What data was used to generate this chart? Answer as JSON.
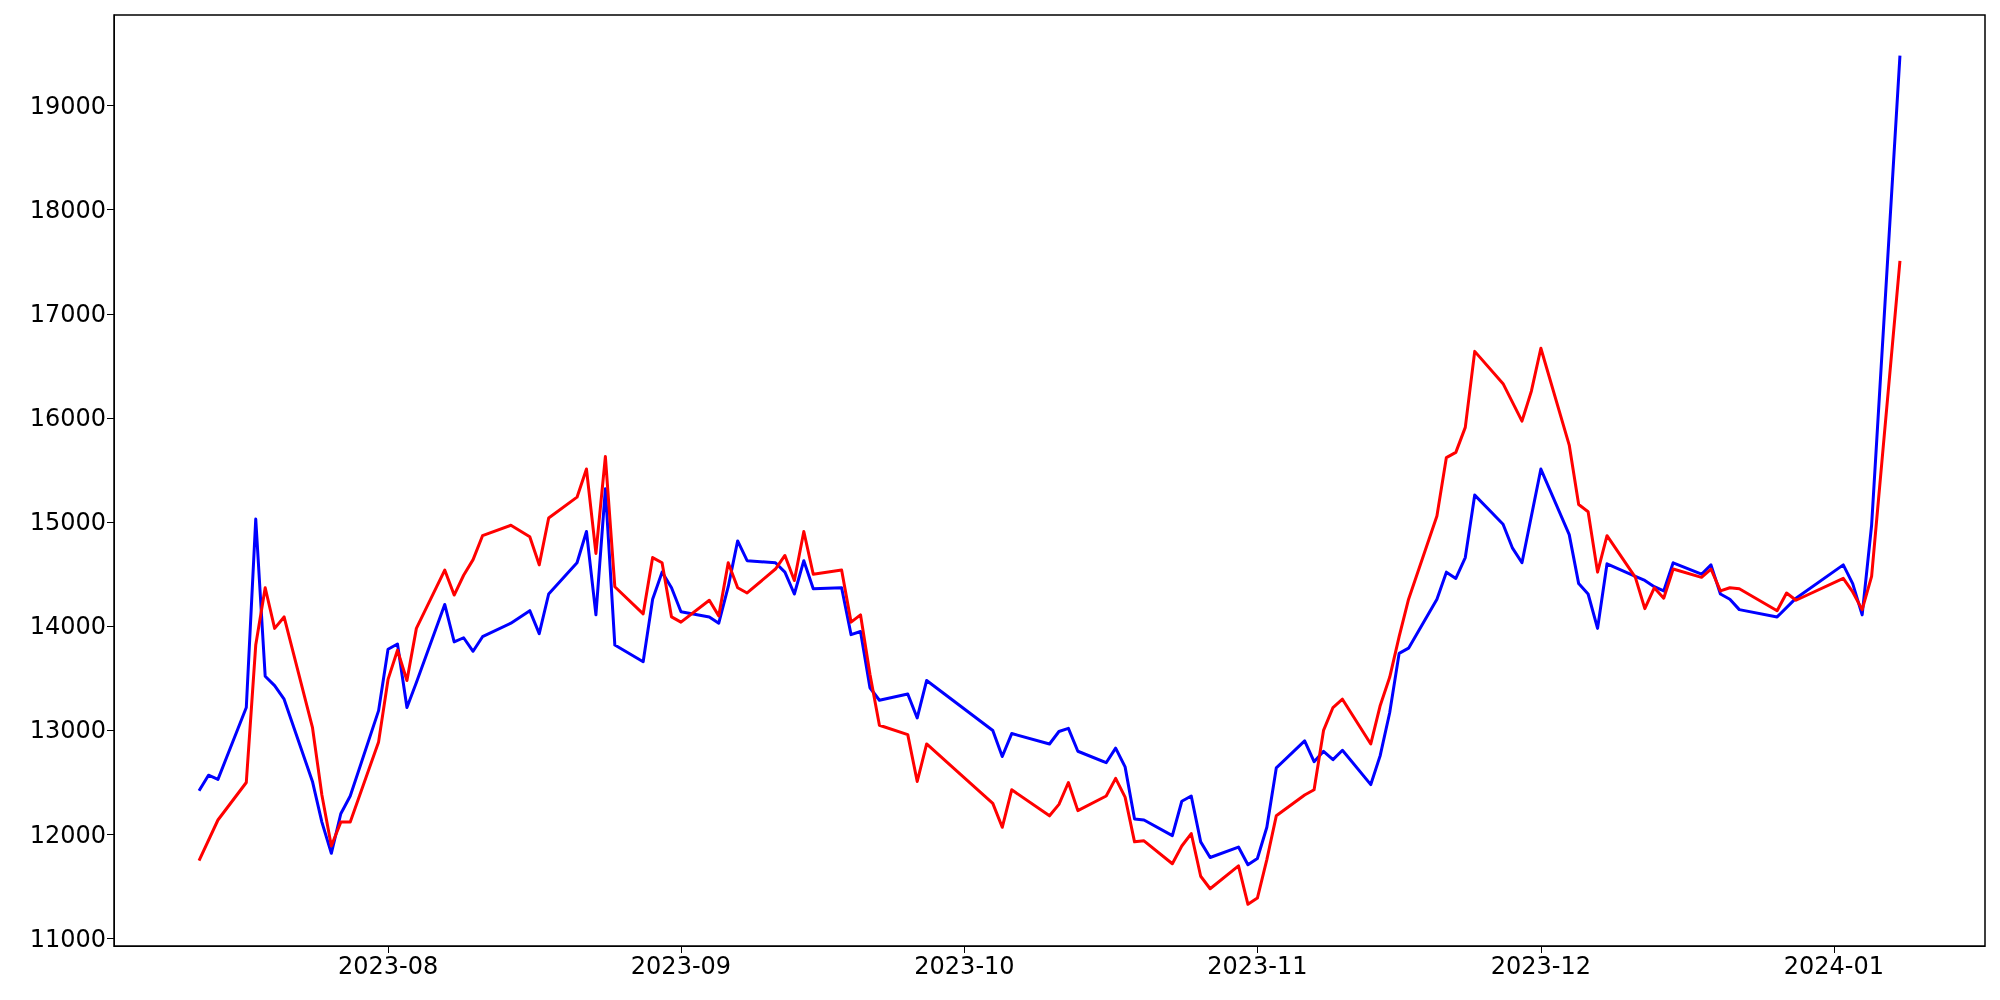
{
  "chart_data": {
    "type": "line",
    "xlim": [
      "2023-07-03",
      "2024-01-17"
    ],
    "ylim": [
      10930,
      19870
    ],
    "xticks": [
      {
        "value": "2023-08-01",
        "label": "2023-08"
      },
      {
        "value": "2023-09-01",
        "label": "2023-09"
      },
      {
        "value": "2023-10-01",
        "label": "2023-10"
      },
      {
        "value": "2023-11-01",
        "label": "2023-11"
      },
      {
        "value": "2023-12-01",
        "label": "2023-12"
      },
      {
        "value": "2024-01-01",
        "label": "2024-01"
      }
    ],
    "yticks": [
      11000,
      12000,
      13000,
      14000,
      15000,
      16000,
      17000,
      18000,
      19000
    ],
    "grid": false,
    "marker": "none",
    "line_style": "solid",
    "series": [
      {
        "color": "#0000ff",
        "x": [
          "2023-07-12",
          "2023-07-13",
          "2023-07-14",
          "2023-07-17",
          "2023-07-18",
          "2023-07-19",
          "2023-07-20",
          "2023-07-21",
          "2023-07-24",
          "2023-07-25",
          "2023-07-26",
          "2023-07-27",
          "2023-07-28",
          "2023-07-31",
          "2023-08-01",
          "2023-08-02",
          "2023-08-03",
          "2023-08-04",
          "2023-08-07",
          "2023-08-08",
          "2023-08-09",
          "2023-08-10",
          "2023-08-11",
          "2023-08-14",
          "2023-08-16",
          "2023-08-17",
          "2023-08-18",
          "2023-08-21",
          "2023-08-22",
          "2023-08-23",
          "2023-08-24",
          "2023-08-25",
          "2023-08-28",
          "2023-08-29",
          "2023-08-30",
          "2023-08-31",
          "2023-09-01",
          "2023-09-04",
          "2023-09-05",
          "2023-09-06",
          "2023-09-07",
          "2023-09-08",
          "2023-09-11",
          "2023-09-12",
          "2023-09-13",
          "2023-09-14",
          "2023-09-15",
          "2023-09-18",
          "2023-09-19",
          "2023-09-20",
          "2023-09-21",
          "2023-09-22",
          "2023-09-25",
          "2023-09-26",
          "2023-09-27",
          "2023-10-04",
          "2023-10-05",
          "2023-10-06",
          "2023-10-10",
          "2023-10-11",
          "2023-10-12",
          "2023-10-13",
          "2023-10-16",
          "2023-10-17",
          "2023-10-18",
          "2023-10-19",
          "2023-10-20",
          "2023-10-23",
          "2023-10-24",
          "2023-10-25",
          "2023-10-26",
          "2023-10-27",
          "2023-10-30",
          "2023-10-31",
          "2023-11-01",
          "2023-11-02",
          "2023-11-03",
          "2023-11-06",
          "2023-11-07",
          "2023-11-08",
          "2023-11-09",
          "2023-11-10",
          "2023-11-13",
          "2023-11-14",
          "2023-11-15",
          "2023-11-16",
          "2023-11-17",
          "2023-11-20",
          "2023-11-21",
          "2023-11-22",
          "2023-11-23",
          "2023-11-24",
          "2023-11-27",
          "2023-11-28",
          "2023-11-29",
          "2023-12-01",
          "2023-12-04",
          "2023-12-05",
          "2023-12-06",
          "2023-12-07",
          "2023-12-08",
          "2023-12-11",
          "2023-12-12",
          "2023-12-13",
          "2023-12-14",
          "2023-12-15",
          "2023-12-18",
          "2023-12-19",
          "2023-12-20",
          "2023-12-21",
          "2023-12-22",
          "2023-12-26",
          "2023-12-28",
          "2024-01-02",
          "2024-01-03",
          "2024-01-04",
          "2024-01-05",
          "2024-01-08"
        ],
        "values": [
          12420,
          12570,
          12530,
          13220,
          15030,
          13520,
          13430,
          13300,
          12510,
          12120,
          11820,
          12200,
          12370,
          13190,
          13780,
          13830,
          13220,
          13460,
          14210,
          13850,
          13890,
          13760,
          13900,
          14030,
          14150,
          13930,
          14310,
          14610,
          14910,
          14110,
          15320,
          13820,
          13660,
          14260,
          14520,
          14370,
          14140,
          14090,
          14030,
          14380,
          14820,
          14630,
          14610,
          14520,
          14310,
          14630,
          14360,
          14370,
          13920,
          13950,
          13410,
          13290,
          13350,
          13120,
          13480,
          13000,
          12750,
          12970,
          12870,
          12990,
          13020,
          12800,
          12690,
          12830,
          12650,
          12150,
          12140,
          11990,
          12320,
          12370,
          11930,
          11780,
          11880,
          11710,
          11770,
          12070,
          12640,
          12900,
          12700,
          12800,
          12720,
          12810,
          12480,
          12760,
          13170,
          13740,
          13790,
          14260,
          14520,
          14460,
          14660,
          15260,
          14980,
          14750,
          14610,
          15510,
          14880,
          14410,
          14310,
          13980,
          14600,
          14480,
          14440,
          14380,
          14340,
          14610,
          14500,
          14590,
          14310,
          14260,
          14160,
          14090,
          14270,
          14590,
          14410,
          14110,
          14970,
          19480
        ]
      },
      {
        "color": "#ff0000",
        "x": [
          "2023-07-12",
          "2023-07-14",
          "2023-07-17",
          "2023-07-18",
          "2023-07-19",
          "2023-07-20",
          "2023-07-21",
          "2023-07-24",
          "2023-07-25",
          "2023-07-26",
          "2023-07-27",
          "2023-07-28",
          "2023-07-31",
          "2023-08-01",
          "2023-08-02",
          "2023-08-03",
          "2023-08-04",
          "2023-08-07",
          "2023-08-08",
          "2023-08-09",
          "2023-08-10",
          "2023-08-11",
          "2023-08-14",
          "2023-08-16",
          "2023-08-17",
          "2023-08-18",
          "2023-08-21",
          "2023-08-22",
          "2023-08-23",
          "2023-08-24",
          "2023-08-25",
          "2023-08-28",
          "2023-08-29",
          "2023-08-30",
          "2023-08-31",
          "2023-09-01",
          "2023-09-04",
          "2023-09-05",
          "2023-09-06",
          "2023-09-07",
          "2023-09-08",
          "2023-09-11",
          "2023-09-12",
          "2023-09-13",
          "2023-09-14",
          "2023-09-15",
          "2023-09-18",
          "2023-09-19",
          "2023-09-20",
          "2023-09-21",
          "2023-09-22",
          "2023-09-25",
          "2023-09-26",
          "2023-09-27",
          "2023-10-04",
          "2023-10-05",
          "2023-10-06",
          "2023-10-10",
          "2023-10-11",
          "2023-10-12",
          "2023-10-13",
          "2023-10-16",
          "2023-10-17",
          "2023-10-18",
          "2023-10-19",
          "2023-10-20",
          "2023-10-23",
          "2023-10-24",
          "2023-10-25",
          "2023-10-26",
          "2023-10-27",
          "2023-10-30",
          "2023-10-31",
          "2023-11-01",
          "2023-11-02",
          "2023-11-03",
          "2023-11-06",
          "2023-11-07",
          "2023-11-08",
          "2023-11-09",
          "2023-11-10",
          "2023-11-13",
          "2023-11-14",
          "2023-11-15",
          "2023-11-16",
          "2023-11-17",
          "2023-11-20",
          "2023-11-21",
          "2023-11-22",
          "2023-11-23",
          "2023-11-24",
          "2023-11-27",
          "2023-11-28",
          "2023-11-29",
          "2023-11-30",
          "2023-12-01",
          "2023-12-04",
          "2023-12-05",
          "2023-12-06",
          "2023-12-07",
          "2023-12-08",
          "2023-12-11",
          "2023-12-12",
          "2023-12-13",
          "2023-12-14",
          "2023-12-15",
          "2023-12-18",
          "2023-12-19",
          "2023-12-20",
          "2023-12-21",
          "2023-12-22",
          "2023-12-26",
          "2023-12-27",
          "2023-12-28",
          "2024-01-02",
          "2024-01-03",
          "2024-01-04",
          "2024-01-05",
          "2024-01-08"
        ],
        "values": [
          11750,
          12140,
          12500,
          13820,
          14370,
          13980,
          14090,
          13030,
          12380,
          11890,
          12120,
          12120,
          12890,
          13490,
          13770,
          13480,
          13980,
          14540,
          14300,
          14490,
          14640,
          14870,
          14970,
          14860,
          14590,
          15040,
          15240,
          15510,
          14700,
          15630,
          14380,
          14120,
          14660,
          14610,
          14090,
          14040,
          14250,
          14100,
          14610,
          14370,
          14320,
          14550,
          14680,
          14440,
          14910,
          14500,
          14540,
          14040,
          14110,
          13540,
          13050,
          12960,
          12510,
          12870,
          12300,
          12070,
          12430,
          12180,
          12290,
          12500,
          12230,
          12370,
          12540,
          12360,
          11930,
          11940,
          11720,
          11890,
          12010,
          11600,
          11480,
          11700,
          11330,
          11390,
          11760,
          12180,
          12380,
          12430,
          13000,
          13220,
          13300,
          12870,
          13240,
          13510,
          13900,
          14260,
          15060,
          15620,
          15670,
          15910,
          16640,
          16330,
          16150,
          15970,
          16260,
          16670,
          15740,
          15170,
          15100,
          14520,
          14870,
          14470,
          14170,
          14370,
          14270,
          14550,
          14470,
          14550,
          14340,
          14370,
          14360,
          14150,
          14320,
          14250,
          14460,
          14330,
          14160,
          14480,
          17510
        ]
      }
    ]
  }
}
